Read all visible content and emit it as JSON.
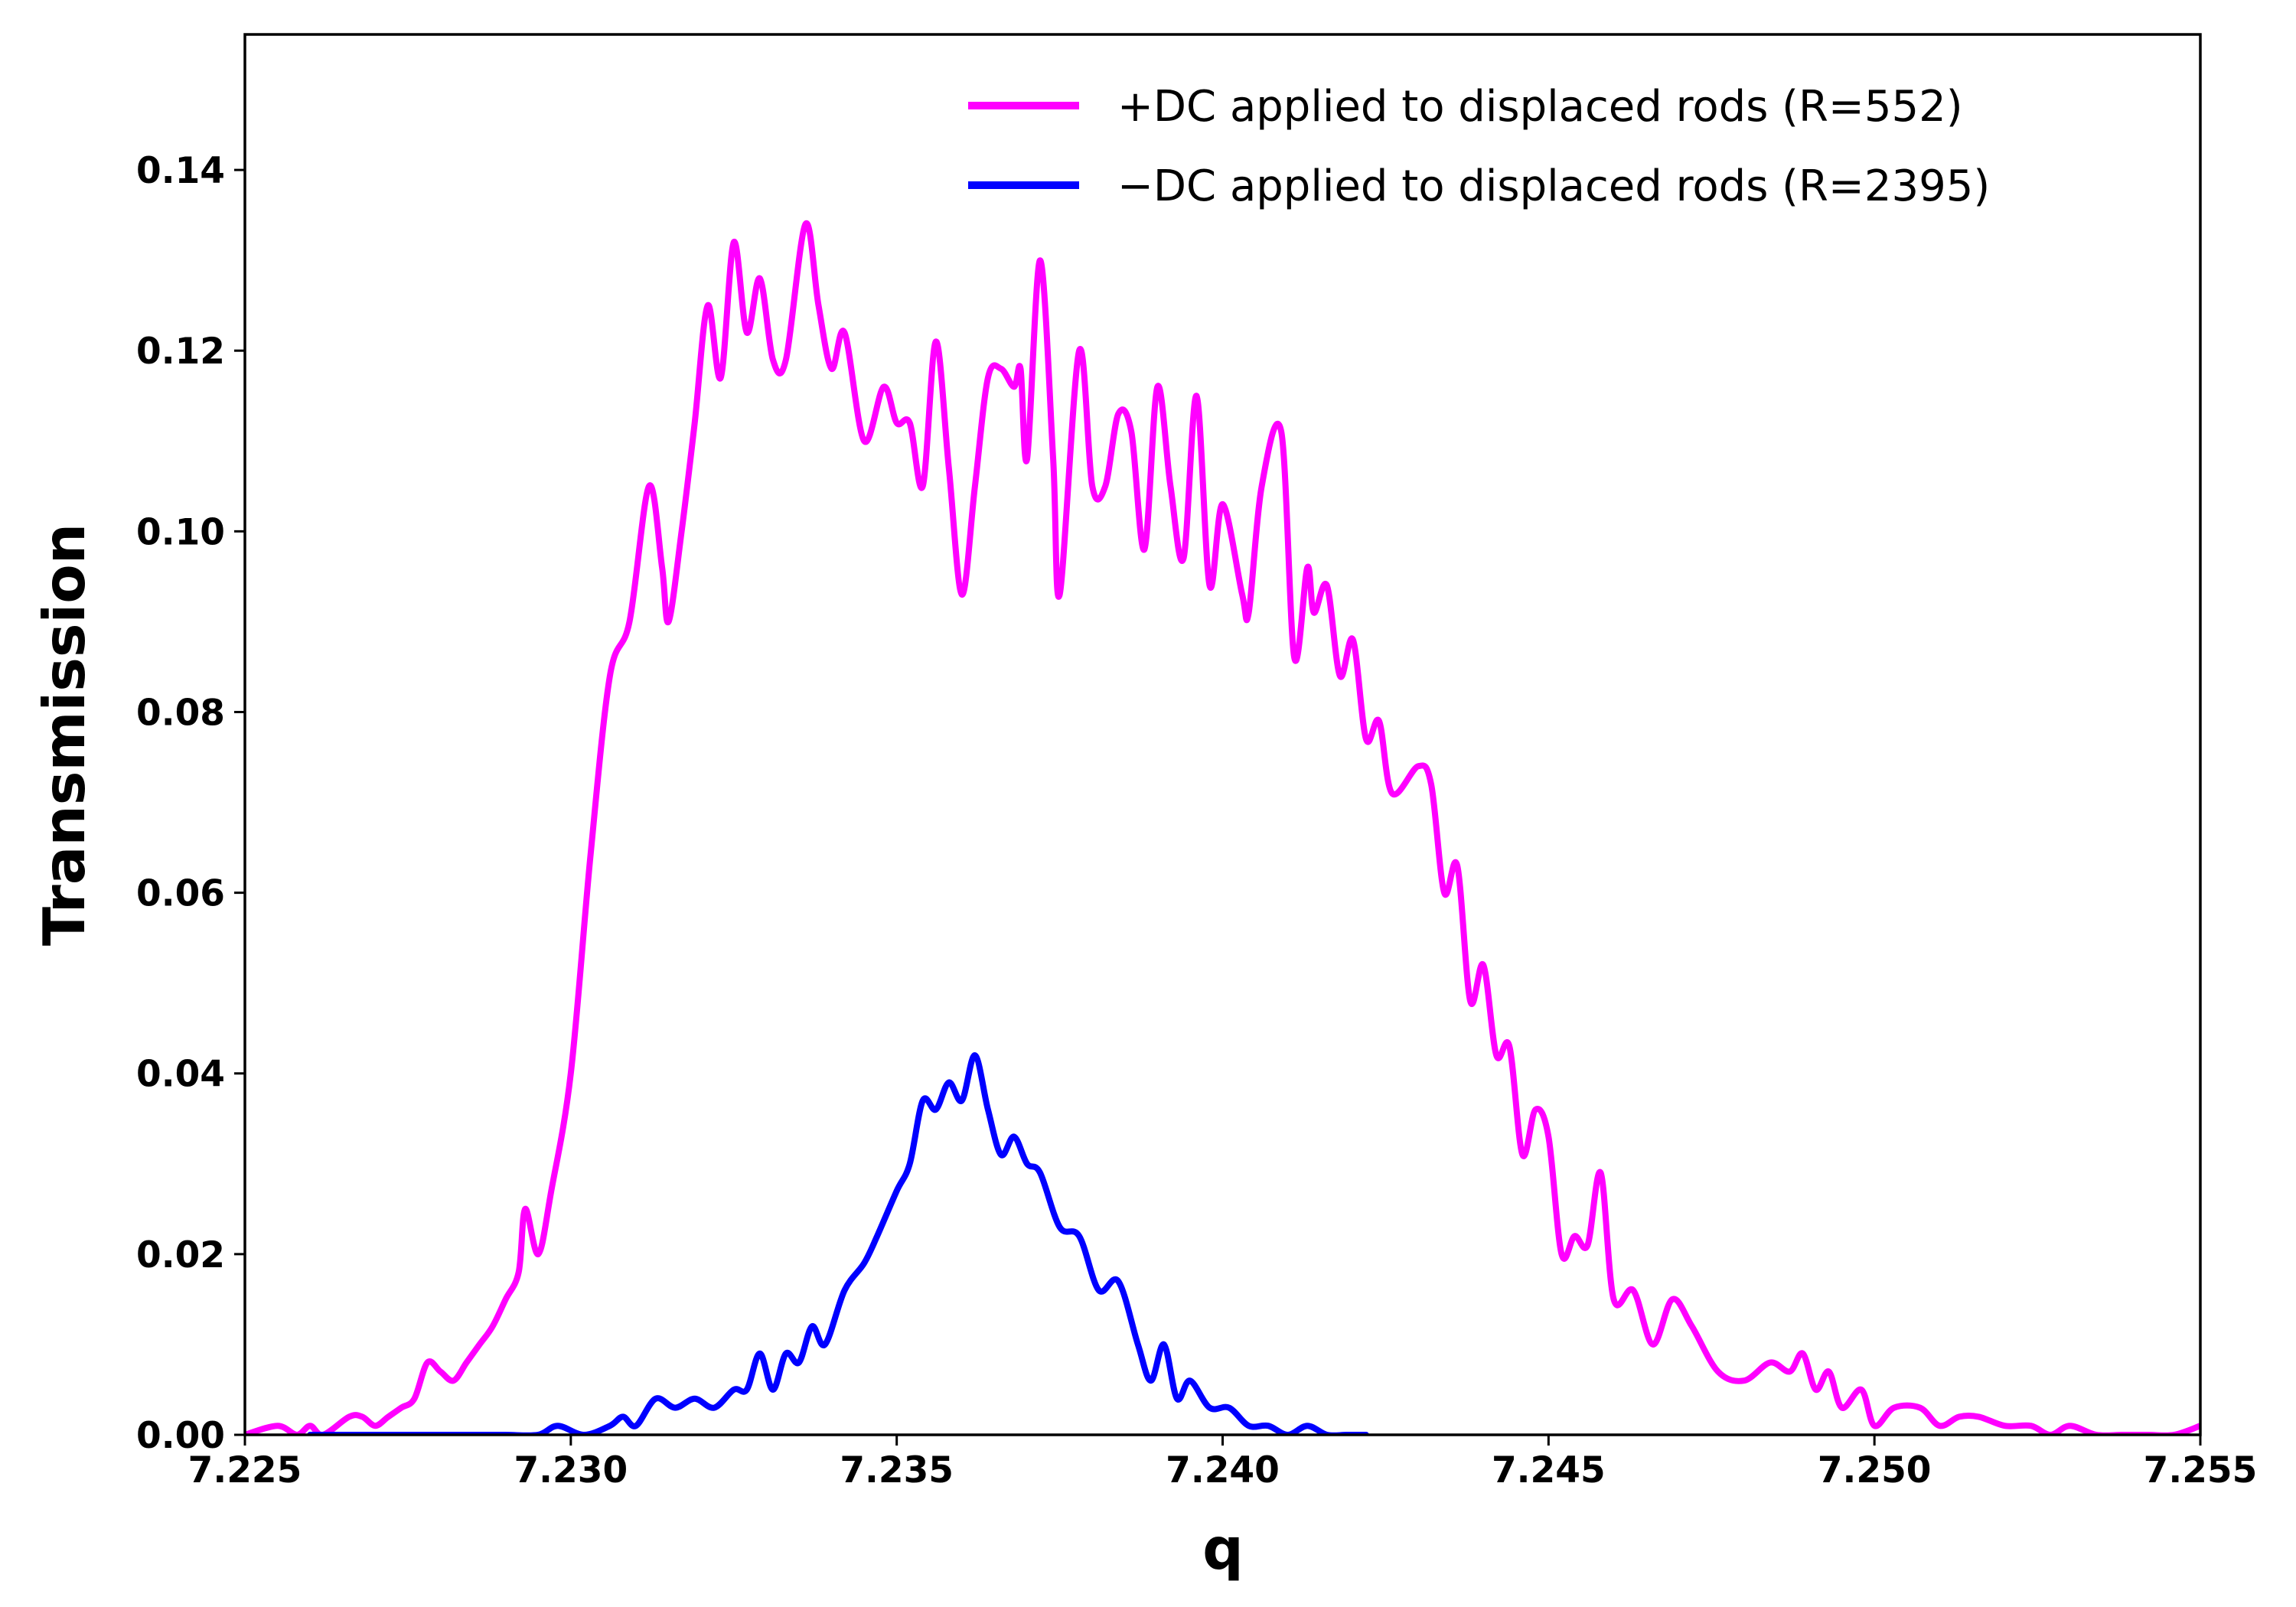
{
  "chart_data": {
    "type": "line",
    "xlabel": "q",
    "ylabel": "Transmission",
    "xlim": [
      7.225,
      7.255
    ],
    "ylim": [
      0.0,
      0.155
    ],
    "x_ticks": [
      7.225,
      7.23,
      7.235,
      7.24,
      7.245,
      7.25,
      7.255
    ],
    "x_tick_labels": [
      "7.225",
      "7.230",
      "7.235",
      "7.240",
      "7.245",
      "7.250",
      "7.255"
    ],
    "y_ticks": [
      0.0,
      0.02,
      0.04,
      0.06,
      0.08,
      0.1,
      0.12,
      0.14
    ],
    "y_tick_labels": [
      "0.00",
      "0.02",
      "0.04",
      "0.06",
      "0.08",
      "0.10",
      "0.12",
      "0.14"
    ],
    "grid": false,
    "legend": {
      "position": "top-right"
    },
    "series": [
      {
        "name": "+DC applied to displaced rods (R=552)",
        "color": "#ff00ff",
        "points": [
          [
            7.225,
            0.0
          ],
          [
            7.2255,
            0.001
          ],
          [
            7.2258,
            0.0
          ],
          [
            7.226,
            0.001
          ],
          [
            7.2262,
            0.0
          ],
          [
            7.2266,
            0.002
          ],
          [
            7.2268,
            0.002
          ],
          [
            7.227,
            0.001
          ],
          [
            7.2272,
            0.002
          ],
          [
            7.2274,
            0.003
          ],
          [
            7.2276,
            0.004
          ],
          [
            7.2278,
            0.008
          ],
          [
            7.228,
            0.007
          ],
          [
            7.2282,
            0.006
          ],
          [
            7.2284,
            0.008
          ],
          [
            7.2286,
            0.01
          ],
          [
            7.2288,
            0.012
          ],
          [
            7.229,
            0.015
          ],
          [
            7.2292,
            0.018
          ],
          [
            7.2293,
            0.025
          ],
          [
            7.2295,
            0.02
          ],
          [
            7.2297,
            0.027
          ],
          [
            7.23,
            0.04
          ],
          [
            7.2303,
            0.064
          ],
          [
            7.2306,
            0.084
          ],
          [
            7.2309,
            0.09
          ],
          [
            7.2312,
            0.105
          ],
          [
            7.2314,
            0.096
          ],
          [
            7.2315,
            0.09
          ],
          [
            7.2317,
            0.1
          ],
          [
            7.2319,
            0.112
          ],
          [
            7.2321,
            0.125
          ],
          [
            7.2323,
            0.117
          ],
          [
            7.2325,
            0.132
          ],
          [
            7.2327,
            0.122
          ],
          [
            7.2329,
            0.128
          ],
          [
            7.2331,
            0.119
          ],
          [
            7.2333,
            0.119
          ],
          [
            7.2336,
            0.134
          ],
          [
            7.2338,
            0.125
          ],
          [
            7.234,
            0.118
          ],
          [
            7.2342,
            0.122
          ],
          [
            7.2345,
            0.11
          ],
          [
            7.2348,
            0.116
          ],
          [
            7.235,
            0.112
          ],
          [
            7.2352,
            0.112
          ],
          [
            7.2354,
            0.105
          ],
          [
            7.2356,
            0.121
          ],
          [
            7.2358,
            0.107
          ],
          [
            7.236,
            0.093
          ],
          [
            7.2362,
            0.105
          ],
          [
            7.2364,
            0.117
          ],
          [
            7.2366,
            0.118
          ],
          [
            7.2368,
            0.116
          ],
          [
            7.2369,
            0.118
          ],
          [
            7.237,
            0.108
          ],
          [
            7.2372,
            0.13
          ],
          [
            7.2374,
            0.108
          ],
          [
            7.2375,
            0.093
          ],
          [
            7.2378,
            0.12
          ],
          [
            7.238,
            0.105
          ],
          [
            7.2382,
            0.105
          ],
          [
            7.2384,
            0.113
          ],
          [
            7.2386,
            0.111
          ],
          [
            7.2388,
            0.098
          ],
          [
            7.239,
            0.116
          ],
          [
            7.2392,
            0.105
          ],
          [
            7.2394,
            0.097
          ],
          [
            7.2396,
            0.115
          ],
          [
            7.2398,
            0.094
          ],
          [
            7.24,
            0.103
          ],
          [
            7.2403,
            0.093
          ],
          [
            7.2404,
            0.091
          ],
          [
            7.2406,
            0.105
          ],
          [
            7.2409,
            0.111
          ],
          [
            7.2411,
            0.086
          ],
          [
            7.2413,
            0.096
          ],
          [
            7.2414,
            0.091
          ],
          [
            7.2416,
            0.094
          ],
          [
            7.2418,
            0.084
          ],
          [
            7.242,
            0.088
          ],
          [
            7.2422,
            0.077
          ],
          [
            7.2424,
            0.079
          ],
          [
            7.2426,
            0.071
          ],
          [
            7.243,
            0.074
          ],
          [
            7.2432,
            0.072
          ],
          [
            7.2434,
            0.06
          ],
          [
            7.2436,
            0.063
          ],
          [
            7.2438,
            0.048
          ],
          [
            7.244,
            0.052
          ],
          [
            7.2442,
            0.042
          ],
          [
            7.2444,
            0.043
          ],
          [
            7.2446,
            0.031
          ],
          [
            7.2448,
            0.036
          ],
          [
            7.245,
            0.033
          ],
          [
            7.2452,
            0.02
          ],
          [
            7.2454,
            0.022
          ],
          [
            7.2456,
            0.021
          ],
          [
            7.2458,
            0.029
          ],
          [
            7.246,
            0.015
          ],
          [
            7.2463,
            0.016
          ],
          [
            7.2466,
            0.01
          ],
          [
            7.2469,
            0.015
          ],
          [
            7.2472,
            0.012
          ],
          [
            7.2476,
            0.007
          ],
          [
            7.248,
            0.006
          ],
          [
            7.2484,
            0.008
          ],
          [
            7.2487,
            0.007
          ],
          [
            7.2489,
            0.009
          ],
          [
            7.2491,
            0.005
          ],
          [
            7.2493,
            0.007
          ],
          [
            7.2495,
            0.003
          ],
          [
            7.2498,
            0.005
          ],
          [
            7.25,
            0.001
          ],
          [
            7.2503,
            0.003
          ],
          [
            7.2507,
            0.003
          ],
          [
            7.251,
            0.001
          ],
          [
            7.2513,
            0.002
          ],
          [
            7.2516,
            0.002
          ],
          [
            7.252,
            0.001
          ],
          [
            7.2524,
            0.001
          ],
          [
            7.2527,
            0.0
          ],
          [
            7.253,
            0.001
          ],
          [
            7.2534,
            0.0
          ],
          [
            7.2538,
            0.0
          ],
          [
            7.2542,
            0.0
          ],
          [
            7.2546,
            0.0
          ],
          [
            7.255,
            0.001
          ]
        ]
      },
      {
        "name": "−DC applied to displaced rods (R=2395)",
        "color": "#0000ff",
        "points": [
          [
            7.226,
            0.0
          ],
          [
            7.2265,
            0.0
          ],
          [
            7.227,
            0.0
          ],
          [
            7.2275,
            0.0
          ],
          [
            7.228,
            0.0
          ],
          [
            7.2285,
            0.0
          ],
          [
            7.229,
            0.0
          ],
          [
            7.2295,
            0.0
          ],
          [
            7.2298,
            0.001
          ],
          [
            7.2302,
            0.0
          ],
          [
            7.2306,
            0.001
          ],
          [
            7.2308,
            0.002
          ],
          [
            7.231,
            0.001
          ],
          [
            7.2313,
            0.004
          ],
          [
            7.2316,
            0.003
          ],
          [
            7.2319,
            0.004
          ],
          [
            7.2322,
            0.003
          ],
          [
            7.2325,
            0.005
          ],
          [
            7.2327,
            0.005
          ],
          [
            7.2329,
            0.009
          ],
          [
            7.2331,
            0.005
          ],
          [
            7.2333,
            0.009
          ],
          [
            7.2335,
            0.008
          ],
          [
            7.2337,
            0.012
          ],
          [
            7.2339,
            0.01
          ],
          [
            7.2342,
            0.016
          ],
          [
            7.2345,
            0.019
          ],
          [
            7.2347,
            0.022
          ],
          [
            7.235,
            0.027
          ],
          [
            7.2352,
            0.03
          ],
          [
            7.2354,
            0.037
          ],
          [
            7.2356,
            0.036
          ],
          [
            7.2358,
            0.039
          ],
          [
            7.236,
            0.037
          ],
          [
            7.2362,
            0.042
          ],
          [
            7.2364,
            0.036
          ],
          [
            7.2366,
            0.031
          ],
          [
            7.2368,
            0.033
          ],
          [
            7.237,
            0.03
          ],
          [
            7.2372,
            0.029
          ],
          [
            7.2375,
            0.023
          ],
          [
            7.2378,
            0.022
          ],
          [
            7.2381,
            0.016
          ],
          [
            7.2384,
            0.017
          ],
          [
            7.2387,
            0.01
          ],
          [
            7.2389,
            0.006
          ],
          [
            7.2391,
            0.01
          ],
          [
            7.2393,
            0.004
          ],
          [
            7.2395,
            0.006
          ],
          [
            7.2398,
            0.003
          ],
          [
            7.2401,
            0.003
          ],
          [
            7.2404,
            0.001
          ],
          [
            7.2407,
            0.001
          ],
          [
            7.241,
            0.0
          ],
          [
            7.2413,
            0.001
          ],
          [
            7.2416,
            0.0
          ],
          [
            7.2419,
            0.0
          ],
          [
            7.2422,
            0.0
          ]
        ]
      }
    ]
  }
}
